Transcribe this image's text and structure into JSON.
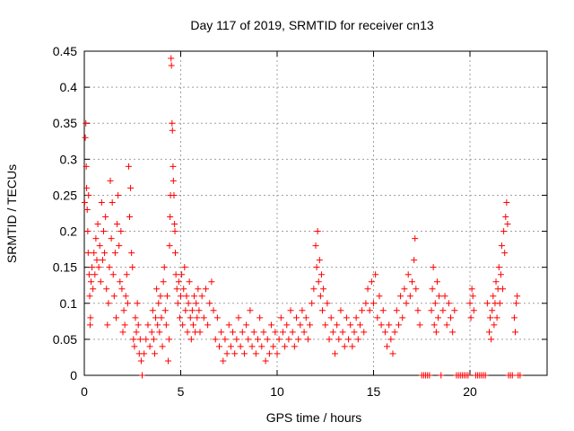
{
  "chart_data": {
    "type": "scatter",
    "title": "Day 117 of 2019, SRMTID for receiver cn13",
    "xlabel": "GPS time / hours",
    "ylabel": "SRMTID / TECUs",
    "xlim": [
      0,
      24
    ],
    "ylim": [
      0,
      0.45
    ],
    "x_ticks": [
      0,
      5,
      10,
      15,
      20
    ],
    "y_ticks": [
      0,
      0.05,
      0.1,
      0.15,
      0.2,
      0.25,
      0.3,
      0.35,
      0.4,
      0.45
    ],
    "x_tick_labels": [
      "0",
      "5",
      "10",
      "15",
      "20"
    ],
    "y_tick_labels": [
      "0",
      "0.05",
      "0.1",
      "0.15",
      "0.2",
      "0.25",
      "0.3",
      "0.35",
      "0.4",
      "0.45"
    ],
    "grid": true,
    "marker": "+",
    "series": [
      {
        "name": "SRMTID",
        "color": "#ff0000",
        "points": [
          [
            0.02,
            0.24
          ],
          [
            0.05,
            0.33
          ],
          [
            0.08,
            0.35
          ],
          [
            0.1,
            0.29
          ],
          [
            0.12,
            0.26
          ],
          [
            0.15,
            0.23
          ],
          [
            0.18,
            0.2
          ],
          [
            0.2,
            0.17
          ],
          [
            0.22,
            0.25
          ],
          [
            0.25,
            0.14
          ],
          [
            0.28,
            0.11
          ],
          [
            0.3,
            0.07
          ],
          [
            0.32,
            0.08
          ],
          [
            0.35,
            0.13
          ],
          [
            0.4,
            0.15
          ],
          [
            0.45,
            0.12
          ],
          [
            0.5,
            0.17
          ],
          [
            0.55,
            0.14
          ],
          [
            0.6,
            0.19
          ],
          [
            0.65,
            0.16
          ],
          [
            0.7,
            0.21
          ],
          [
            0.75,
            0.15
          ],
          [
            0.8,
            0.18
          ],
          [
            0.85,
            0.13
          ],
          [
            0.9,
            0.24
          ],
          [
            0.95,
            0.16
          ],
          [
            1.0,
            0.2
          ],
          [
            1.05,
            0.17
          ],
          [
            1.1,
            0.22
          ],
          [
            1.15,
            0.12
          ],
          [
            1.2,
            0.07
          ],
          [
            1.25,
            0.1
          ],
          [
            1.3,
            0.15
          ],
          [
            1.35,
            0.27
          ],
          [
            1.4,
            0.19
          ],
          [
            1.45,
            0.24
          ],
          [
            1.5,
            0.14
          ],
          [
            1.55,
            0.11
          ],
          [
            1.6,
            0.17
          ],
          [
            1.65,
            0.08
          ],
          [
            1.7,
            0.21
          ],
          [
            1.75,
            0.25
          ],
          [
            1.8,
            0.18
          ],
          [
            1.85,
            0.13
          ],
          [
            1.9,
            0.2
          ],
          [
            1.95,
            0.12
          ],
          [
            2.0,
            0.06
          ],
          [
            2.05,
            0.09
          ],
          [
            2.1,
            0.07
          ],
          [
            2.15,
            0.11
          ],
          [
            2.2,
            0.14
          ],
          [
            2.25,
            0.1
          ],
          [
            2.3,
            0.29
          ],
          [
            2.35,
            0.22
          ],
          [
            2.4,
            0.26
          ],
          [
            2.45,
            0.17
          ],
          [
            2.5,
            0.15
          ],
          [
            2.55,
            0.05
          ],
          [
            2.6,
            0.04
          ],
          [
            2.65,
            0.08
          ],
          [
            2.7,
            0.06
          ],
          [
            2.75,
            0.1
          ],
          [
            2.8,
            0.07
          ],
          [
            2.85,
            0.03
          ],
          [
            2.9,
            0.05
          ],
          [
            2.95,
            0.02
          ],
          [
            3.0,
            0.0
          ],
          [
            3.1,
            0.03
          ],
          [
            3.2,
            0.05
          ],
          [
            3.3,
            0.07
          ],
          [
            3.4,
            0.04
          ],
          [
            3.5,
            0.06
          ],
          [
            3.55,
            0.09
          ],
          [
            3.6,
            0.05
          ],
          [
            3.65,
            0.03
          ],
          [
            3.7,
            0.08
          ],
          [
            3.75,
            0.12
          ],
          [
            3.8,
            0.07
          ],
          [
            3.85,
            0.1
          ],
          [
            3.9,
            0.06
          ],
          [
            3.95,
            0.11
          ],
          [
            4.0,
            0.08
          ],
          [
            4.05,
            0.04
          ],
          [
            4.1,
            0.13
          ],
          [
            4.15,
            0.15
          ],
          [
            4.2,
            0.09
          ],
          [
            4.25,
            0.07
          ],
          [
            4.3,
            0.11
          ],
          [
            4.35,
            0.02
          ],
          [
            4.4,
            0.05
          ],
          [
            4.42,
            0.18
          ],
          [
            4.45,
            0.22
          ],
          [
            4.47,
            0.25
          ],
          [
            4.5,
            0.44
          ],
          [
            4.52,
            0.43
          ],
          [
            4.55,
            0.35
          ],
          [
            4.57,
            0.34
          ],
          [
            4.6,
            0.29
          ],
          [
            4.62,
            0.27
          ],
          [
            4.65,
            0.25
          ],
          [
            4.68,
            0.21
          ],
          [
            4.7,
            0.2
          ],
          [
            4.72,
            0.17
          ],
          [
            4.75,
            0.14
          ],
          [
            4.8,
            0.12
          ],
          [
            4.85,
            0.1
          ],
          [
            4.9,
            0.13
          ],
          [
            4.95,
            0.08
          ],
          [
            5.0,
            0.11
          ],
          [
            5.05,
            0.14
          ],
          [
            5.1,
            0.07
          ],
          [
            5.15,
            0.12
          ],
          [
            5.2,
            0.15
          ],
          [
            5.25,
            0.09
          ],
          [
            5.3,
            0.11
          ],
          [
            5.35,
            0.06
          ],
          [
            5.4,
            0.1
          ],
          [
            5.45,
            0.13
          ],
          [
            5.5,
            0.08
          ],
          [
            5.55,
            0.05
          ],
          [
            5.6,
            0.09
          ],
          [
            5.65,
            0.07
          ],
          [
            5.7,
            0.11
          ],
          [
            5.75,
            0.06
          ],
          [
            5.8,
            0.1
          ],
          [
            5.85,
            0.08
          ],
          [
            5.9,
            0.12
          ],
          [
            5.95,
            0.09
          ],
          [
            6.0,
            0.06
          ],
          [
            6.1,
            0.11
          ],
          [
            6.2,
            0.08
          ],
          [
            6.3,
            0.12
          ],
          [
            6.4,
            0.07
          ],
          [
            6.5,
            0.1
          ],
          [
            6.6,
            0.13
          ],
          [
            6.7,
            0.09
          ],
          [
            6.8,
            0.05
          ],
          [
            6.9,
            0.08
          ],
          [
            7.0,
            0.04
          ],
          [
            7.1,
            0.06
          ],
          [
            7.2,
            0.02
          ],
          [
            7.3,
            0.05
          ],
          [
            7.4,
            0.03
          ],
          [
            7.5,
            0.07
          ],
          [
            7.6,
            0.04
          ],
          [
            7.7,
            0.06
          ],
          [
            7.8,
            0.03
          ],
          [
            7.9,
            0.05
          ],
          [
            8.0,
            0.08
          ],
          [
            8.1,
            0.04
          ],
          [
            8.2,
            0.06
          ],
          [
            8.3,
            0.03
          ],
          [
            8.4,
            0.07
          ],
          [
            8.5,
            0.05
          ],
          [
            8.6,
            0.09
          ],
          [
            8.7,
            0.04
          ],
          [
            8.8,
            0.06
          ],
          [
            8.9,
            0.03
          ],
          [
            9.0,
            0.05
          ],
          [
            9.1,
            0.08
          ],
          [
            9.2,
            0.04
          ],
          [
            9.3,
            0.06
          ],
          [
            9.4,
            0.02
          ],
          [
            9.5,
            0.05
          ],
          [
            9.6,
            0.03
          ],
          [
            9.7,
            0.07
          ],
          [
            9.8,
            0.04
          ],
          [
            9.9,
            0.06
          ],
          [
            10.0,
            0.03
          ],
          [
            10.1,
            0.05
          ],
          [
            10.2,
            0.08
          ],
          [
            10.3,
            0.06
          ],
          [
            10.4,
            0.04
          ],
          [
            10.5,
            0.07
          ],
          [
            10.6,
            0.05
          ],
          [
            10.7,
            0.09
          ],
          [
            10.8,
            0.06
          ],
          [
            10.9,
            0.04
          ],
          [
            11.0,
            0.08
          ],
          [
            11.1,
            0.05
          ],
          [
            11.2,
            0.07
          ],
          [
            11.3,
            0.09
          ],
          [
            11.4,
            0.06
          ],
          [
            11.5,
            0.08
          ],
          [
            11.6,
            0.05
          ],
          [
            11.7,
            0.07
          ],
          [
            11.8,
            0.1
          ],
          [
            11.9,
            0.12
          ],
          [
            12.0,
            0.18
          ],
          [
            12.05,
            0.15
          ],
          [
            12.1,
            0.2
          ],
          [
            12.15,
            0.13
          ],
          [
            12.2,
            0.16
          ],
          [
            12.25,
            0.11
          ],
          [
            12.3,
            0.14
          ],
          [
            12.35,
            0.09
          ],
          [
            12.4,
            0.12
          ],
          [
            12.5,
            0.07
          ],
          [
            12.6,
            0.1
          ],
          [
            12.7,
            0.05
          ],
          [
            12.8,
            0.08
          ],
          [
            12.9,
            0.06
          ],
          [
            13.0,
            0.03
          ],
          [
            13.1,
            0.07
          ],
          [
            13.2,
            0.05
          ],
          [
            13.3,
            0.09
          ],
          [
            13.4,
            0.06
          ],
          [
            13.5,
            0.04
          ],
          [
            13.6,
            0.08
          ],
          [
            13.7,
            0.05
          ],
          [
            13.8,
            0.07
          ],
          [
            13.9,
            0.04
          ],
          [
            14.0,
            0.06
          ],
          [
            14.1,
            0.08
          ],
          [
            14.2,
            0.05
          ],
          [
            14.3,
            0.07
          ],
          [
            14.4,
            0.09
          ],
          [
            14.5,
            0.06
          ],
          [
            14.6,
            0.1
          ],
          [
            14.7,
            0.12
          ],
          [
            14.8,
            0.09
          ],
          [
            14.9,
            0.13
          ],
          [
            15.0,
            0.1
          ],
          [
            15.1,
            0.14
          ],
          [
            15.2,
            0.08
          ],
          [
            15.3,
            0.11
          ],
          [
            15.4,
            0.07
          ],
          [
            15.5,
            0.09
          ],
          [
            15.6,
            0.06
          ],
          [
            15.7,
            0.04
          ],
          [
            15.8,
            0.07
          ],
          [
            15.9,
            0.05
          ],
          [
            16.0,
            0.03
          ],
          [
            16.1,
            0.06
          ],
          [
            16.2,
            0.09
          ],
          [
            16.3,
            0.07
          ],
          [
            16.4,
            0.11
          ],
          [
            16.5,
            0.08
          ],
          [
            16.6,
            0.12
          ],
          [
            16.7,
            0.1
          ],
          [
            16.8,
            0.14
          ],
          [
            16.9,
            0.11
          ],
          [
            17.0,
            0.13
          ],
          [
            17.1,
            0.16
          ],
          [
            17.15,
            0.19
          ],
          [
            17.2,
            0.12
          ],
          [
            17.3,
            0.09
          ],
          [
            17.4,
            0.07
          ],
          [
            17.5,
            0.0
          ],
          [
            17.6,
            0.0
          ],
          [
            17.7,
            0.0
          ],
          [
            17.8,
            0.0
          ],
          [
            17.9,
            0.0
          ],
          [
            18.0,
            0.09
          ],
          [
            18.05,
            0.12
          ],
          [
            18.1,
            0.15
          ],
          [
            18.15,
            0.07
          ],
          [
            18.2,
            0.1
          ],
          [
            18.25,
            0.06
          ],
          [
            18.3,
            0.13
          ],
          [
            18.35,
            0.08
          ],
          [
            18.4,
            0.11
          ],
          [
            18.5,
            0.0
          ],
          [
            18.6,
            0.09
          ],
          [
            18.7,
            0.11
          ],
          [
            18.8,
            0.07
          ],
          [
            18.9,
            0.1
          ],
          [
            19.0,
            0.08
          ],
          [
            19.1,
            0.06
          ],
          [
            19.2,
            0.09
          ],
          [
            19.3,
            0.0
          ],
          [
            19.4,
            0.0
          ],
          [
            19.5,
            0.0
          ],
          [
            19.6,
            0.0
          ],
          [
            19.7,
            0.0
          ],
          [
            19.8,
            0.0
          ],
          [
            19.9,
            0.0
          ],
          [
            20.0,
            0.1
          ],
          [
            20.05,
            0.08
          ],
          [
            20.1,
            0.12
          ],
          [
            20.15,
            0.11
          ],
          [
            20.2,
            0.09
          ],
          [
            20.3,
            0.0
          ],
          [
            20.4,
            0.0
          ],
          [
            20.5,
            0.0
          ],
          [
            20.6,
            0.0
          ],
          [
            20.7,
            0.0
          ],
          [
            20.8,
            0.0
          ],
          [
            20.9,
            0.1
          ],
          [
            21.0,
            0.06
          ],
          [
            21.05,
            0.08
          ],
          [
            21.1,
            0.05
          ],
          [
            21.15,
            0.09
          ],
          [
            21.2,
            0.11
          ],
          [
            21.25,
            0.07
          ],
          [
            21.3,
            0.1
          ],
          [
            21.35,
            0.13
          ],
          [
            21.4,
            0.08
          ],
          [
            21.45,
            0.12
          ],
          [
            21.5,
            0.15
          ],
          [
            21.55,
            0.1
          ],
          [
            21.6,
            0.14
          ],
          [
            21.65,
            0.18
          ],
          [
            21.7,
            0.12
          ],
          [
            21.75,
            0.2
          ],
          [
            21.8,
            0.17
          ],
          [
            21.85,
            0.22
          ],
          [
            21.9,
            0.24
          ],
          [
            21.95,
            0.21
          ],
          [
            22.0,
            0.0
          ],
          [
            22.1,
            0.0
          ],
          [
            22.2,
            0.0
          ],
          [
            22.3,
            0.08
          ],
          [
            22.35,
            0.06
          ],
          [
            22.4,
            0.1
          ],
          [
            22.45,
            0.11
          ],
          [
            22.5,
            0.0
          ],
          [
            22.6,
            0.0
          ]
        ]
      }
    ]
  }
}
